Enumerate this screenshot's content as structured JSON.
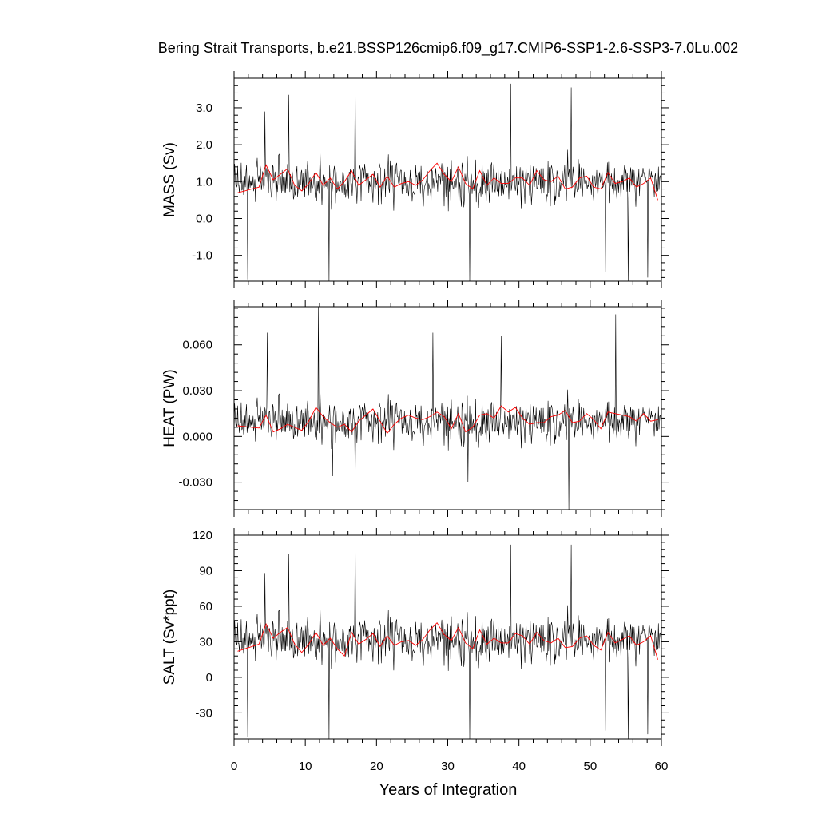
{
  "chart_data": {
    "type": "line",
    "title": "Bering Strait Transports, b.e21.BSSP126cmip6.f09_g17.CMIP6-SSP1-2.6-SSP3-7.0Lu.002",
    "xlabel": "Years of Integration",
    "xlim": [
      0,
      60
    ],
    "xticks": [
      0,
      10,
      20,
      30,
      40,
      50,
      60
    ],
    "grid": false,
    "panels": [
      {
        "name": "mass",
        "ylabel": "MASS (Sv)",
        "ylim": [
          -1.7,
          3.8
        ],
        "yticks": [
          -1.0,
          0.0,
          1.0,
          2.0,
          3.0
        ],
        "ytick_labels": [
          "-1.0",
          "0.0",
          "1.0",
          "2.0",
          "3.0"
        ],
        "monthly_mean": 1.0,
        "monthly_amp": 0.75,
        "spikes": [
          [
            17.0,
            3.7
          ],
          [
            38.8,
            3.65
          ],
          [
            47.3,
            3.55
          ],
          [
            7.7,
            3.35
          ],
          [
            4.3,
            2.9
          ],
          [
            1.9,
            -1.65
          ],
          [
            13.3,
            -1.7
          ],
          [
            33.1,
            -1.7
          ],
          [
            55.3,
            -1.7
          ],
          [
            58.1,
            -1.6
          ],
          [
            52.2,
            -1.45
          ]
        ],
        "annual": {
          "x": [
            0.5,
            1.5,
            2.5,
            3.5,
            4.5,
            5.5,
            6.5,
            7.5,
            8.5,
            9.5,
            10.5,
            11.5,
            12.5,
            13.5,
            14.5,
            15.5,
            16.5,
            17.5,
            18.5,
            19.5,
            20.5,
            21.5,
            22.5,
            23.5,
            24.5,
            25.5,
            26.5,
            27.5,
            28.5,
            29.5,
            30.5,
            31.5,
            32.5,
            33.5,
            34.5,
            35.5,
            36.5,
            37.5,
            38.5,
            39.5,
            40.5,
            41.5,
            42.5,
            43.5,
            44.5,
            45.5,
            46.5,
            47.5,
            48.5,
            49.5,
            50.5,
            51.5,
            52.5,
            53.5,
            54.5,
            55.5,
            56.5,
            57.5,
            58.5,
            59.5
          ],
          "y": [
            0.7,
            0.75,
            0.8,
            0.85,
            1.45,
            1.05,
            1.2,
            1.35,
            0.9,
            0.75,
            0.95,
            1.25,
            0.9,
            1.1,
            0.8,
            1.0,
            1.3,
            0.9,
            1.05,
            1.2,
            0.85,
            1.15,
            0.85,
            0.95,
            1.0,
            0.9,
            1.05,
            1.3,
            1.5,
            1.2,
            1.0,
            1.4,
            0.95,
            0.8,
            1.3,
            0.9,
            1.1,
            0.95,
            0.95,
            1.1,
            1.1,
            0.9,
            1.3,
            1.05,
            1.0,
            1.15,
            0.8,
            0.85,
            1.1,
            1.15,
            0.85,
            0.8,
            1.25,
            0.95,
            1.0,
            1.1,
            0.85,
            0.95,
            1.1,
            0.5
          ]
        }
      },
      {
        "name": "heat",
        "ylabel": "HEAT (PW)",
        "ylim": [
          -0.048,
          0.085
        ],
        "yticks": [
          -0.03,
          0.0,
          0.03,
          0.06
        ],
        "ytick_labels": [
          "-0.030",
          "0.000",
          "0.030",
          "0.060"
        ],
        "monthly_mean": 0.01,
        "monthly_amp": 0.018,
        "spikes": [
          [
            11.8,
            0.085
          ],
          [
            53.6,
            0.08
          ],
          [
            4.7,
            0.068
          ],
          [
            27.9,
            0.068
          ],
          [
            37.5,
            0.066
          ],
          [
            47.0,
            -0.048
          ],
          [
            32.8,
            -0.03
          ],
          [
            17.0,
            -0.027
          ],
          [
            13.8,
            -0.026
          ]
        ],
        "annual": {
          "x": [
            0.5,
            1.5,
            2.5,
            3.5,
            4.5,
            5.5,
            6.5,
            7.5,
            8.5,
            9.5,
            10.5,
            11.5,
            12.5,
            13.5,
            14.5,
            15.5,
            16.5,
            17.5,
            18.5,
            19.5,
            20.5,
            21.5,
            22.5,
            23.5,
            24.5,
            25.5,
            26.5,
            27.5,
            28.5,
            29.5,
            30.5,
            31.5,
            32.5,
            33.5,
            34.5,
            35.5,
            36.5,
            37.5,
            38.5,
            39.5,
            40.5,
            41.5,
            42.5,
            43.5,
            44.5,
            45.5,
            46.5,
            47.5,
            48.5,
            49.5,
            50.5,
            51.5,
            52.5,
            53.5,
            54.5,
            55.5,
            56.5,
            57.5,
            58.5,
            59.5
          ],
          "y": [
            0.007,
            0.0065,
            0.006,
            0.0055,
            0.014,
            0.003,
            0.005,
            0.008,
            0.006,
            0.004,
            0.01,
            0.019,
            0.013,
            0.009,
            0.006,
            0.008,
            0.003,
            0.01,
            0.014,
            0.018,
            0.01,
            0.002,
            0.008,
            0.012,
            0.014,
            0.012,
            0.011,
            0.013,
            0.016,
            0.013,
            0.005,
            0.015,
            0.003,
            0.006,
            0.014,
            0.015,
            0.012,
            0.02,
            0.016,
            0.019,
            0.012,
            0.008,
            0.009,
            0.009,
            0.013,
            0.014,
            0.017,
            0.009,
            0.01,
            0.015,
            0.011,
            0.005,
            0.016,
            0.015,
            0.014,
            0.013,
            0.01,
            0.015,
            0.01,
            0.011
          ]
        }
      },
      {
        "name": "salt",
        "ylabel": "SALT (Sv*ppt)",
        "ylim": [
          -52,
          120
        ],
        "yticks": [
          -30,
          0,
          30,
          60,
          90,
          120
        ],
        "ytick_labels": [
          "-30",
          "0",
          "30",
          "60",
          "90",
          "120"
        ],
        "monthly_mean": 32,
        "monthly_amp": 25,
        "spikes": [
          [
            17.0,
            118
          ],
          [
            38.8,
            112
          ],
          [
            47.3,
            112
          ],
          [
            7.7,
            104
          ],
          [
            4.3,
            88
          ],
          [
            1.9,
            -50
          ],
          [
            13.3,
            -52
          ],
          [
            33.1,
            -52
          ],
          [
            55.3,
            -52
          ],
          [
            58.1,
            -48
          ],
          [
            52.2,
            -45
          ]
        ],
        "annual": {
          "x": [
            0.5,
            1.5,
            2.5,
            3.5,
            4.5,
            5.5,
            6.5,
            7.5,
            8.5,
            9.5,
            10.5,
            11.5,
            12.5,
            13.5,
            14.5,
            15.5,
            16.5,
            17.5,
            18.5,
            19.5,
            20.5,
            21.5,
            22.5,
            23.5,
            24.5,
            25.5,
            26.5,
            27.5,
            28.5,
            29.5,
            30.5,
            31.5,
            32.5,
            33.5,
            34.5,
            35.5,
            36.5,
            37.5,
            38.5,
            39.5,
            40.5,
            41.5,
            42.5,
            43.5,
            44.5,
            45.5,
            46.5,
            47.5,
            48.5,
            49.5,
            50.5,
            51.5,
            52.5,
            53.5,
            54.5,
            55.5,
            56.5,
            57.5,
            58.5,
            59.5
          ],
          "y": [
            22,
            24,
            26,
            28,
            45,
            33,
            38,
            42,
            28,
            21,
            28,
            38,
            27,
            33,
            24,
            18,
            38,
            28,
            32,
            37,
            26,
            35,
            27,
            30,
            31,
            27,
            32,
            40,
            46,
            36,
            31,
            42,
            29,
            24,
            40,
            28,
            33,
            29,
            29,
            37,
            35,
            28,
            38,
            31,
            29,
            33,
            25,
            26,
            33,
            35,
            27,
            23,
            38,
            29,
            32,
            35,
            27,
            30,
            35,
            15
          ]
        }
      }
    ],
    "series": [
      {
        "color": "#000000"
      },
      {
        "color": "#ff0000"
      }
    ]
  }
}
